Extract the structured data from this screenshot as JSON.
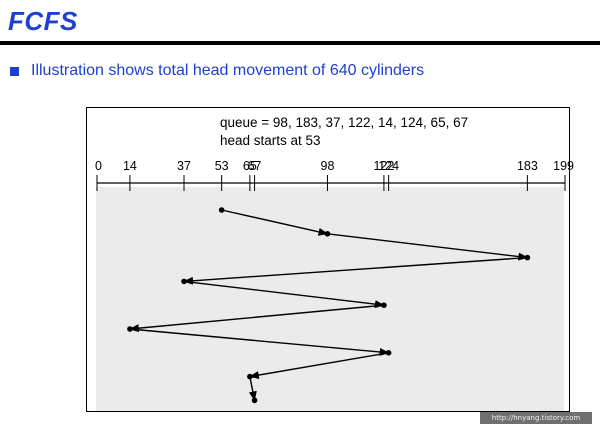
{
  "slide": {
    "title": "FCFS",
    "bullet": "Illustration shows total head movement of 640 cylinders"
  },
  "diagram": {
    "queue_label": "queue = 98, 183, 37, 122, 14, 124, 65, 67",
    "head_label": "head starts at 53",
    "axis_ticks": [
      0,
      14,
      37,
      53,
      65,
      67,
      98,
      122,
      124,
      183,
      199
    ],
    "axis_min": 0,
    "axis_max": 199,
    "head_start": 53,
    "sequence": [
      98,
      183,
      37,
      122,
      14,
      124,
      65,
      67
    ],
    "colors": {
      "panel": "#ebebeb",
      "line": "#000000"
    }
  },
  "watermark": "http://hnyang.tistory.com"
}
